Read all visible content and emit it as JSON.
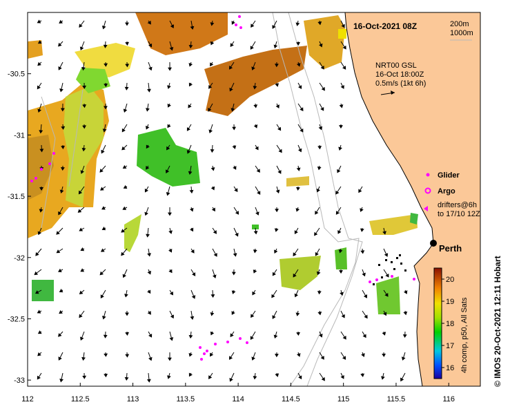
{
  "title": "16-Oct-2021 08Z",
  "depth_contours": [
    "200m",
    "1000m"
  ],
  "current_info": {
    "line1": "NRT00 GSL",
    "line2": "16-Oct 18:00Z",
    "line3": "0.5m/s (1kt 6h)"
  },
  "legend": {
    "glider": "Glider",
    "argo": "Argo",
    "drifters_line1": "drifters@6h",
    "drifters_line2": "to 17/10 12Z"
  },
  "city": "Perth",
  "credit": "© IMOS 20-Oct-2021 12:11 Hobart",
  "colorbar": {
    "label": "4h comp, p50, All Sats",
    "ticks": [
      "16",
      "17",
      "18",
      "19",
      "20"
    ],
    "min": 15.5,
    "max": 20.5
  },
  "axes": {
    "x_ticks": [
      "112",
      "112.5",
      "113",
      "113.5",
      "114",
      "114.5",
      "115",
      "115.5",
      "116"
    ],
    "y_ticks": [
      "-30.5",
      "-31",
      "-31.5",
      "-32",
      "-32.5",
      "-33"
    ],
    "lon_range": [
      112,
      116.3
    ],
    "lat_range": [
      -33.05,
      -30.0
    ]
  },
  "colors": {
    "land": "#fbc898",
    "glider": "#ff00ff",
    "argo": "#ff00ff",
    "drifter": "#ff00ff",
    "contour": "#b8b8b8"
  }
}
